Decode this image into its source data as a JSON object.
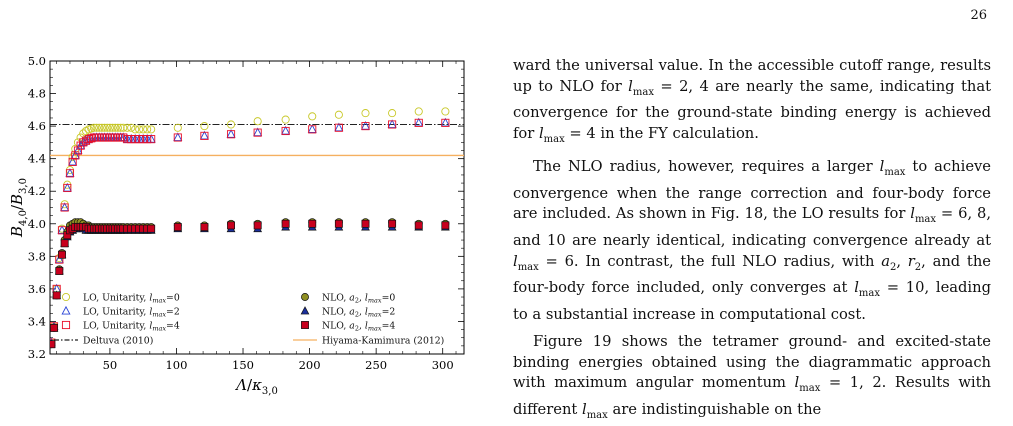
{
  "page": {
    "number": "26"
  },
  "paragraphs": [
    {
      "id": "p1",
      "indent": false,
      "text": "ward the universal value. In the accessible cutoff range, results up to NLO for l_max = 2, 4 are nearly the same, indicating that convergence for the ground-state binding energy is achieved for l_max = 4 in the FY calculation."
    },
    {
      "id": "p2",
      "indent": true,
      "text": "The NLO radius, however, requires a larger l_max to achieve convergence when the range correction and four-body force are included. As shown in Fig. 18, the LO results for l_max = 6, 8, and 10 are nearly identical, indicating convergence already at l_max = 6. In contrast, the full NLO radius, with a₂, r₂, and the four-body force included, only converges at l_max = 10, leading to a substantial increase in computational cost."
    },
    {
      "id": "p3",
      "indent": true,
      "text": "Figure 19 shows the tetramer ground- and excited-state binding energies obtained using the diagrammatic approach with maximum angular momentum l_max = 1, 2. Results with different l_max are indistinguishable on the"
    }
  ],
  "chart_data": {
    "type": "scatter",
    "xlabel": "Λ/κ3,0",
    "ylabel": "B4,0/B3,0",
    "xlim": [
      5,
      316
    ],
    "ylim": [
      3.2,
      5.0
    ],
    "xticks": [
      50,
      100,
      150,
      200,
      250,
      300
    ],
    "yticks": [
      3.2,
      3.4,
      3.6,
      3.8,
      4.0,
      4.2,
      4.4,
      4.6,
      4.8,
      5.0
    ],
    "xtick_labels": [
      "50",
      "100",
      "150",
      "200",
      "250",
      "300"
    ],
    "ytick_labels": [
      "3.2",
      "3.4",
      "3.6",
      "3.8",
      "4.0",
      "4.2",
      "4.4",
      "4.6",
      "4.8",
      "5.0"
    ],
    "grid": false,
    "legend_placement": "bottom",
    "reference_lines": [
      {
        "name": "Deltuva (2010)",
        "y": 4.61,
        "color": "#222222",
        "style": "dashdot"
      },
      {
        "name": "Hiyama-Kamimura (2012)",
        "y": 4.42,
        "color": "#f5b060",
        "style": "solid"
      }
    ],
    "series": [
      {
        "name": "LO, Unitarity, lmax=0",
        "marker": "circle-open",
        "color": "#c8c828",
        "x": [
          6,
          8,
          10,
          12,
          14,
          16,
          18,
          20,
          22,
          24,
          26,
          28,
          30,
          32,
          34,
          36,
          38,
          40,
          42,
          44,
          46,
          48,
          50,
          52,
          54,
          56,
          58,
          60,
          63,
          66,
          69,
          72,
          75,
          78,
          81,
          101,
          121,
          141,
          161,
          182,
          202,
          222,
          242,
          262,
          282,
          302
        ],
        "y": [
          3.27,
          3.37,
          3.6,
          3.79,
          3.97,
          4.12,
          4.24,
          4.33,
          4.41,
          4.46,
          4.5,
          4.53,
          4.555,
          4.57,
          4.58,
          4.585,
          4.59,
          4.59,
          4.59,
          4.59,
          4.59,
          4.59,
          4.59,
          4.59,
          4.59,
          4.59,
          4.59,
          4.59,
          4.59,
          4.59,
          4.58,
          4.58,
          4.58,
          4.58,
          4.58,
          4.59,
          4.6,
          4.61,
          4.63,
          4.64,
          4.66,
          4.67,
          4.68,
          4.68,
          4.69,
          4.69
        ]
      },
      {
        "name": "LO, Unitarity, lmax=2",
        "marker": "triangle-open",
        "color": "#2b45d6",
        "x": [
          6,
          8,
          10,
          12,
          14,
          16,
          18,
          20,
          22,
          24,
          26,
          28,
          30,
          32,
          34,
          36,
          38,
          40,
          42,
          44,
          46,
          48,
          50,
          52,
          54,
          56,
          58,
          60,
          63,
          66,
          69,
          72,
          75,
          78,
          81,
          101,
          121,
          141,
          161,
          182,
          202,
          222,
          242,
          262,
          282,
          302
        ],
        "y": [
          3.27,
          3.37,
          3.6,
          3.78,
          3.96,
          4.1,
          4.22,
          4.31,
          4.38,
          4.42,
          4.45,
          4.48,
          4.5,
          4.51,
          4.52,
          4.525,
          4.53,
          4.53,
          4.53,
          4.53,
          4.53,
          4.53,
          4.53,
          4.53,
          4.53,
          4.53,
          4.53,
          4.53,
          4.52,
          4.52,
          4.52,
          4.52,
          4.52,
          4.52,
          4.52,
          4.53,
          4.54,
          4.55,
          4.56,
          4.57,
          4.58,
          4.59,
          4.6,
          4.61,
          4.62,
          4.62
        ]
      },
      {
        "name": "LO, Unitarity, lmax=4",
        "marker": "square-open",
        "color": "#e8102a",
        "x": [
          6,
          8,
          10,
          12,
          14,
          16,
          18,
          20,
          22,
          24,
          26,
          28,
          30,
          32,
          34,
          36,
          38,
          40,
          42,
          44,
          46,
          48,
          50,
          52,
          54,
          56,
          58,
          60,
          63,
          66,
          69,
          72,
          75,
          78,
          81,
          101,
          121,
          141,
          161,
          182,
          202,
          222,
          242,
          262,
          282,
          302
        ],
        "y": [
          3.27,
          3.37,
          3.6,
          3.78,
          3.96,
          4.1,
          4.22,
          4.31,
          4.38,
          4.42,
          4.45,
          4.48,
          4.5,
          4.51,
          4.52,
          4.525,
          4.53,
          4.53,
          4.53,
          4.53,
          4.53,
          4.53,
          4.53,
          4.53,
          4.53,
          4.53,
          4.53,
          4.53,
          4.52,
          4.52,
          4.52,
          4.52,
          4.52,
          4.52,
          4.52,
          4.53,
          4.54,
          4.55,
          4.56,
          4.57,
          4.58,
          4.59,
          4.6,
          4.61,
          4.62,
          4.62
        ]
      },
      {
        "name": "NLO, a2, lmax=0",
        "marker": "circle-filled",
        "color": "#8f8f22",
        "x": [
          6,
          8,
          10,
          12,
          14,
          16,
          18,
          20,
          22,
          24,
          26,
          28,
          30,
          32,
          34,
          36,
          38,
          40,
          42,
          44,
          46,
          48,
          50,
          52,
          54,
          56,
          58,
          60,
          63,
          66,
          69,
          72,
          75,
          78,
          81,
          101,
          121,
          141,
          161,
          182,
          202,
          222,
          242,
          262,
          282,
          302
        ],
        "y": [
          3.26,
          3.36,
          3.56,
          3.72,
          3.82,
          3.9,
          3.95,
          3.99,
          4.0,
          4.01,
          4.01,
          4.01,
          4.0,
          3.99,
          3.99,
          3.98,
          3.98,
          3.98,
          3.98,
          3.98,
          3.98,
          3.98,
          3.98,
          3.98,
          3.98,
          3.98,
          3.98,
          3.98,
          3.98,
          3.98,
          3.98,
          3.98,
          3.98,
          3.98,
          3.98,
          3.99,
          3.99,
          4.0,
          4.0,
          4.01,
          4.01,
          4.01,
          4.01,
          4.01,
          4.0,
          4.0
        ]
      },
      {
        "name": "NLO, a2, lmax=2",
        "marker": "triangle-filled",
        "color": "#1a2f9c",
        "x": [
          6,
          8,
          10,
          12,
          14,
          16,
          18,
          20,
          22,
          24,
          26,
          28,
          30,
          32,
          34,
          36,
          38,
          40,
          42,
          44,
          46,
          48,
          50,
          52,
          54,
          56,
          58,
          60,
          63,
          66,
          69,
          72,
          75,
          78,
          81,
          101,
          121,
          141,
          161,
          182,
          202,
          222,
          242,
          262,
          282,
          302
        ],
        "y": [
          3.26,
          3.36,
          3.56,
          3.71,
          3.81,
          3.88,
          3.92,
          3.95,
          3.96,
          3.97,
          3.97,
          3.97,
          3.97,
          3.96,
          3.96,
          3.96,
          3.96,
          3.96,
          3.96,
          3.96,
          3.96,
          3.96,
          3.96,
          3.96,
          3.96,
          3.96,
          3.96,
          3.96,
          3.96,
          3.96,
          3.96,
          3.96,
          3.96,
          3.96,
          3.96,
          3.97,
          3.97,
          3.97,
          3.97,
          3.98,
          3.98,
          3.98,
          3.98,
          3.98,
          3.98,
          3.98
        ]
      },
      {
        "name": "NLO, a2, lmax=4",
        "marker": "square-filled",
        "color": "#c8001e",
        "x": [
          6,
          8,
          10,
          12,
          14,
          16,
          18,
          20,
          22,
          24,
          26,
          28,
          30,
          32,
          34,
          36,
          38,
          40,
          42,
          44,
          46,
          48,
          50,
          52,
          54,
          56,
          58,
          60,
          63,
          66,
          69,
          72,
          75,
          78,
          81,
          101,
          121,
          141,
          161,
          182,
          202,
          222,
          242,
          262,
          282,
          302
        ],
        "y": [
          3.26,
          3.36,
          3.56,
          3.71,
          3.81,
          3.88,
          3.93,
          3.96,
          3.97,
          3.98,
          3.98,
          3.98,
          3.98,
          3.98,
          3.97,
          3.97,
          3.97,
          3.97,
          3.97,
          3.97,
          3.97,
          3.97,
          3.97,
          3.97,
          3.97,
          3.97,
          3.97,
          3.97,
          3.97,
          3.97,
          3.97,
          3.97,
          3.97,
          3.97,
          3.97,
          3.98,
          3.98,
          3.99,
          3.99,
          4.0,
          4.0,
          4.0,
          4.0,
          4.0,
          3.99,
          3.99
        ]
      }
    ],
    "legend": [
      "LO, Unitarity, lmax=0",
      "NLO, a2, lmax=0",
      "LO, Unitarity, lmax=2",
      "NLO, a2, lmax=2",
      "LO, Unitarity, lmax=4",
      "NLO, a2, lmax=4",
      "Deltuva (2010)",
      "Hiyama-Kamimura (2012)"
    ]
  }
}
